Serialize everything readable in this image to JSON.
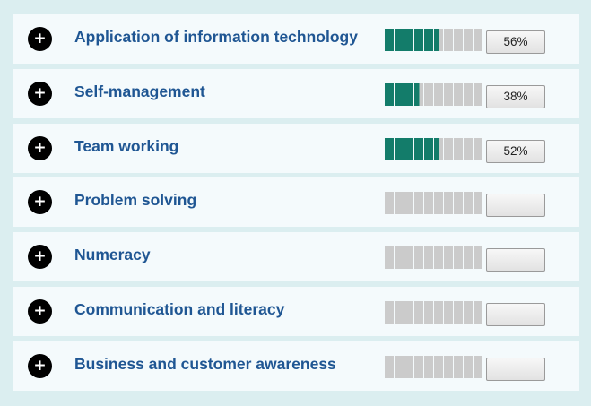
{
  "skills": [
    {
      "label": "Application of information technology",
      "progress": 0.56,
      "percent_text": "56%"
    },
    {
      "label": "Self-management",
      "progress": 0.38,
      "percent_text": "38%"
    },
    {
      "label": "Team working",
      "progress": 0.52,
      "percent_text": "52%"
    },
    {
      "label": "Problem solving",
      "progress": 0,
      "percent_text": ""
    },
    {
      "label": "Numeracy",
      "progress": 0,
      "percent_text": ""
    },
    {
      "label": "Communication and literacy",
      "progress": 0,
      "percent_text": ""
    },
    {
      "label": "Business and customer awareness",
      "progress": 0,
      "percent_text": ""
    }
  ],
  "expand_icon": "plus-circle-icon",
  "colors": {
    "filled_segment": "#137c6a",
    "empty_segment": "#cbcbcb",
    "label_text": "#1f5693",
    "row_background": "#f4fafc",
    "panel_background": "#dbeef0"
  }
}
